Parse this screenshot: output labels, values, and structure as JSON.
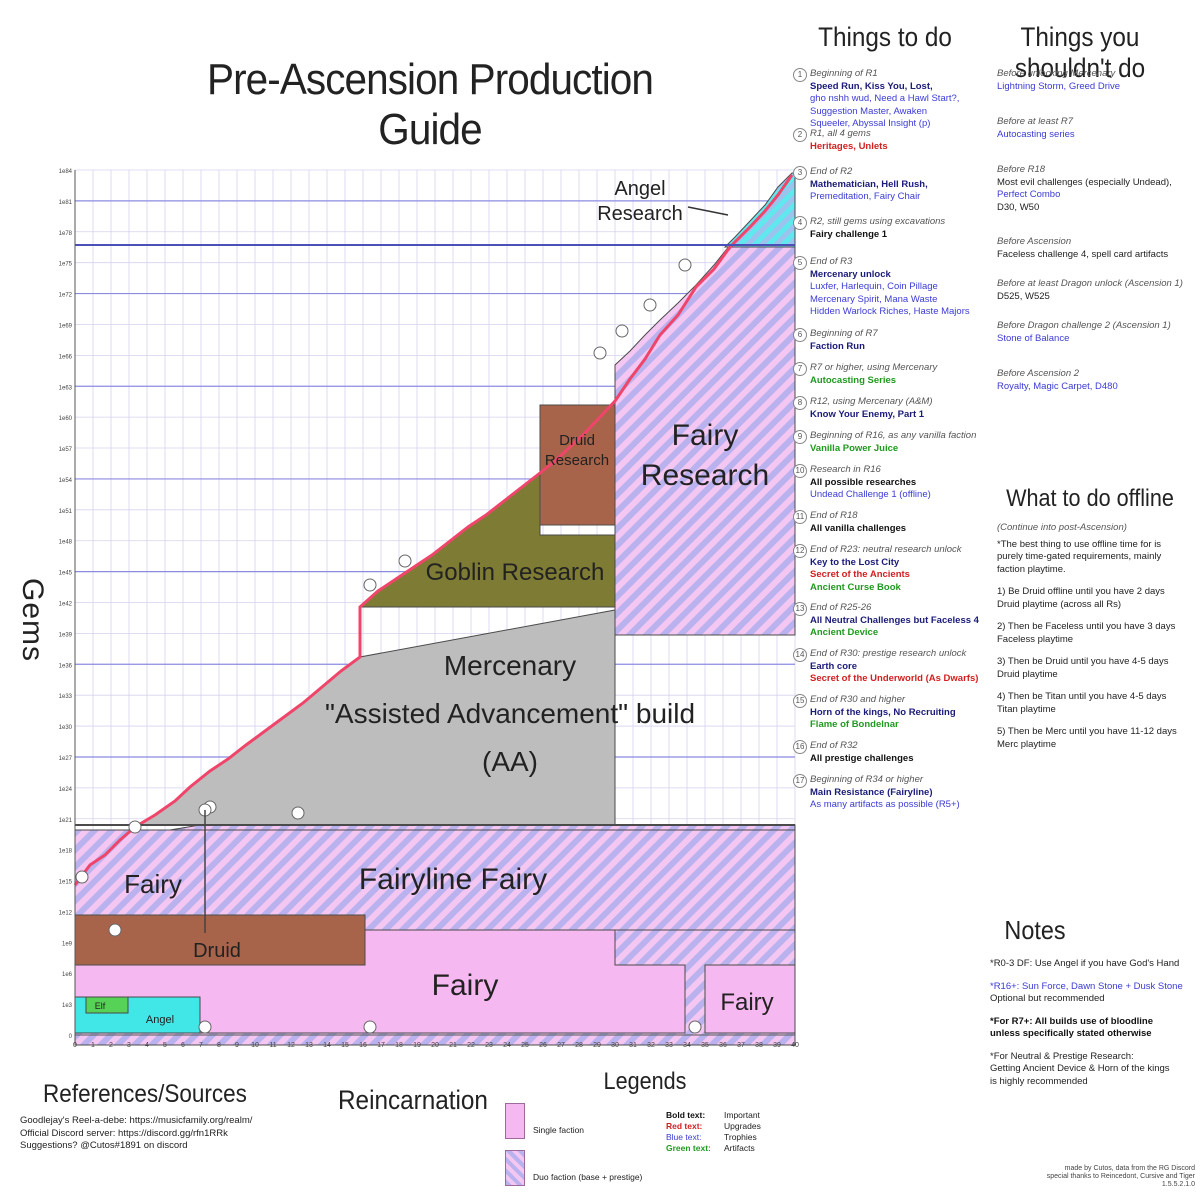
{
  "title": "Pre-Ascension Production Guide",
  "y_axis_label": "Gems",
  "colors": {
    "fairy_pink": "#f6b8f0",
    "stripe_purple": "#c7b4ee",
    "grey": "#bdbdbd",
    "goblin": "#7e7b34",
    "druid": "#a8644a",
    "angel": "#41e6e6",
    "line_red": "#f0456a",
    "sky_stripe": "#98b8ec"
  },
  "chart_data": {
    "type": "area",
    "title": "Pre-Ascension Production Guide",
    "ylabel": "Gems",
    "xlabel": "",
    "x_ticks": [
      "0",
      "1",
      "2",
      "3",
      "4",
      "5",
      "6",
      "7",
      "8",
      "9",
      "10",
      "11",
      "12",
      "13",
      "14",
      "15",
      "16",
      "17",
      "18",
      "19",
      "20",
      "21",
      "22",
      "23",
      "24",
      "25",
      "26",
      "27",
      "28",
      "29",
      "30",
      "31",
      "32",
      "33",
      "34",
      "35",
      "36",
      "37",
      "38",
      "39",
      "40"
    ],
    "y_ticks": [
      "0",
      "1e3",
      "1e6",
      "1e9",
      "1e12",
      "1e15",
      "1e18",
      "1e21",
      "1e24",
      "1e27",
      "1e30",
      "1e33",
      "1e36",
      "1e39",
      "1e42",
      "1e45",
      "1e48",
      "1e51",
      "1e54",
      "1e57",
      "1e60",
      "1e63",
      "1e66",
      "1e69",
      "1e72",
      "1e75",
      "1e78",
      "1e81",
      "1e84"
    ],
    "regions": [
      {
        "label": "Angel",
        "kind": "solid"
      },
      {
        "label": "Elf",
        "kind": "solid"
      },
      {
        "label": "Druid",
        "kind": "solid"
      },
      {
        "label": "Fairy",
        "kind": "solid"
      },
      {
        "label": "Fairy",
        "kind": "solid"
      },
      {
        "label": "Fairy",
        "kind": "striped"
      },
      {
        "label": "Fairyline Fairy",
        "kind": "striped"
      },
      {
        "label": "Mercenary",
        "kind": "grey"
      },
      {
        "label": "\"Assisted Advancement\" build",
        "kind": "grey"
      },
      {
        "label": "(AA)",
        "kind": "grey"
      },
      {
        "label": "Goblin Research",
        "kind": "solid"
      },
      {
        "label": "Druid",
        "kind": "solid"
      },
      {
        "label": "Research",
        "kind": "solid"
      },
      {
        "label": "Fairy",
        "kind": "striped"
      },
      {
        "label": "Research",
        "kind": "striped"
      },
      {
        "label": "Angel",
        "kind": "striped"
      },
      {
        "label": "Research",
        "kind": "striped"
      }
    ]
  },
  "things_to_do": {
    "heading": "Things to do",
    "items": [
      {
        "n": "1",
        "lines": [
          "Beginning of R1",
          "Speed Run, Kiss You, Lost,",
          "gho nshh wud, Need a Hawl Start?,",
          "Suggestion Master, Awaken",
          "Squeeler, Abyssal Insight (p)"
        ]
      },
      {
        "n": "2",
        "lines": [
          "R1, all 4 gems",
          "Heritages, Unlets"
        ]
      },
      {
        "n": "3",
        "lines": [
          "End of R2",
          "Mathematician, Hell Rush,",
          "Premeditation, Fairy Chair"
        ]
      },
      {
        "n": "4",
        "lines": [
          "R2, still gems using excavations",
          "Fairy challenge 1"
        ]
      },
      {
        "n": "5",
        "lines": [
          "End of R3",
          "Mercenary unlock",
          "Luxfer, Harlequin, Coin Pillage",
          "Mercenary Spirit, Mana Waste",
          "Hidden Warlock Riches, Haste Majors"
        ]
      },
      {
        "n": "6",
        "lines": [
          "Beginning of R7",
          "Faction Run"
        ]
      },
      {
        "n": "7",
        "lines": [
          "R7 or higher, using Mercenary",
          "Autocasting Series"
        ]
      },
      {
        "n": "8",
        "lines": [
          "R12, using Mercenary (A&M)",
          "Know Your Enemy, Part 1"
        ]
      },
      {
        "n": "9",
        "lines": [
          "Beginning of R16, as any vanilla faction",
          "Vanilla Power Juice"
        ]
      },
      {
        "n": "10",
        "lines": [
          "Research in R16",
          "All possible researches",
          "Undead Challenge 1 (offline)"
        ]
      },
      {
        "n": "11",
        "lines": [
          "End of R18",
          "All vanilla challenges"
        ]
      },
      {
        "n": "12",
        "lines": [
          "End of R23: neutral research unlock",
          "Key to the Lost City",
          "Secret of the Ancients",
          "Ancient Curse Book"
        ]
      },
      {
        "n": "13",
        "lines": [
          "End of R25-26",
          "All Neutral Challenges but Faceless 4",
          "Ancient Device"
        ]
      },
      {
        "n": "14",
        "lines": [
          "End of R30: prestige research unlock",
          "Earth core",
          "Secret of the Underworld (As Dwarfs)"
        ]
      },
      {
        "n": "15",
        "lines": [
          "End of R30 and higher",
          "Horn of the kings, No Recruiting",
          "Flame of Bondelnar"
        ]
      },
      {
        "n": "16",
        "lines": [
          "End of R32",
          "All prestige challenges"
        ]
      },
      {
        "n": "17",
        "lines": [
          "Beginning of R34 or higher",
          "Main Resistance (Fairyline)",
          "As many artifacts as possible (R5+)"
        ]
      }
    ]
  },
  "things_you_shouldnt": {
    "heading": "Things you shouldn't do",
    "items": [
      {
        "ctx": "Before unlocking Mercenary",
        "text": "Lightning Storm, Greed Drive"
      },
      {
        "ctx": "Before at least R7",
        "text": "Autocasting series"
      },
      {
        "ctx": "Before R18",
        "text": "Most evil challenges (especially Undead),",
        "text2": "Perfect Combo",
        "text3": "D30, W50"
      },
      {
        "ctx": "Before Ascension",
        "text": "Faceless challenge 4, spell card artifacts"
      },
      {
        "ctx": "Before at least Dragon unlock (Ascension 1)",
        "text": "D525, W525"
      },
      {
        "ctx": "Before Dragon challenge 2 (Ascension 1)",
        "text": "Stone of Balance"
      },
      {
        "ctx": "Before Ascension 2",
        "text": "Royalty, Magic Carpet, D480"
      }
    ]
  },
  "offline": {
    "heading": "What to do offline",
    "sub": "(Continue into post-Ascension)",
    "intro": [
      "*The best thing to use offline time for is",
      "purely time-gated requirements, mainly",
      "faction playtime."
    ],
    "steps": [
      [
        "1) Be Druid offline until you have 2 days",
        "Druid playtime (across all Rs)"
      ],
      [
        "2) Then be Faceless until you have 3 days",
        "Faceless playtime"
      ],
      [
        "3) Then be Druid until you have 4-5 days",
        "Druid playtime"
      ],
      [
        "4) Then be Titan until you have 4-5 days",
        "Titan playtime"
      ],
      [
        "5) Then be Merc until you have 11-12 days",
        "Merc playtime"
      ]
    ]
  },
  "notes": {
    "heading": "Notes",
    "lines": [
      "*R0-3 DF: Use Angel if you have God's Hand",
      "*R16+: Sun Force, Dawn Stone + Dusk Stone",
      "Optional but recommended",
      "*For R7+: All builds use of bloodline",
      "unless specifically stated otherwise",
      "*For Neutral & Prestige Research:",
      "Getting Ancient Device & Horn of the kings",
      "is highly recommended"
    ],
    "credit": [
      "made by Cutos, data from the RG Discord",
      "special thanks to Reincedont, Cursive and Tiger",
      "1.5.5.2.1.0"
    ]
  },
  "references": {
    "heading": "References/Sources",
    "lines": [
      "Goodlejay's Reel-a-debe: https://musicfamily.org/realm/",
      "Official Discord server: https://discord.gg/rfn1RRk",
      "Suggestions? @Cutos#1891 on discord"
    ]
  },
  "reincarnation_label": "Reincarnation",
  "legends": {
    "heading": "Legends",
    "single": "Single faction",
    "duo": "Duo faction (base + prestige)",
    "key": [
      {
        "a": "Bold text:",
        "b": "Important"
      },
      {
        "a": "Red text:",
        "b": "Upgrades"
      },
      {
        "a": "Blue text:",
        "b": "Trophies"
      },
      {
        "a": "Green text:",
        "b": "Artifacts"
      }
    ]
  }
}
